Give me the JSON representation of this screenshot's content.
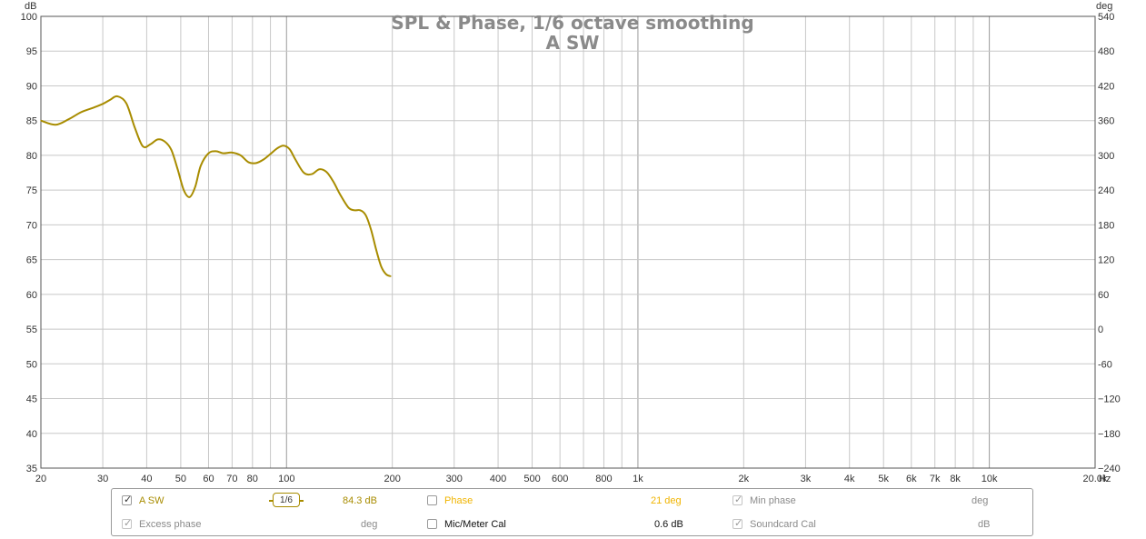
{
  "chart_data": {
    "type": "line",
    "title": "SPL & Phase, 1/6 octave smoothing",
    "subtitle": "A SW",
    "x_unit": "Hz",
    "y_left_unit": "dB",
    "y_right_unit": "deg",
    "x_scale": "log",
    "xlim": [
      20,
      20000
    ],
    "ylim_left": [
      35,
      100
    ],
    "ylim_right": [
      -240,
      540
    ],
    "grid": true,
    "x_ticks": [
      {
        "value": 20,
        "label": "20"
      },
      {
        "value": 30,
        "label": "30"
      },
      {
        "value": 40,
        "label": "40"
      },
      {
        "value": 50,
        "label": "50"
      },
      {
        "value": 60,
        "label": "60"
      },
      {
        "value": 70,
        "label": "70"
      },
      {
        "value": 80,
        "label": "80"
      },
      {
        "value": 100,
        "label": "100"
      },
      {
        "value": 200,
        "label": "200"
      },
      {
        "value": 300,
        "label": "300"
      },
      {
        "value": 400,
        "label": "400"
      },
      {
        "value": 500,
        "label": "500"
      },
      {
        "value": 600,
        "label": "600"
      },
      {
        "value": 800,
        "label": "800"
      },
      {
        "value": 1000,
        "label": "1k"
      },
      {
        "value": 2000,
        "label": "2k"
      },
      {
        "value": 3000,
        "label": "3k"
      },
      {
        "value": 4000,
        "label": "4k"
      },
      {
        "value": 5000,
        "label": "5k"
      },
      {
        "value": 6000,
        "label": "6k"
      },
      {
        "value": 7000,
        "label": "7k"
      },
      {
        "value": 8000,
        "label": "8k"
      },
      {
        "value": 10000,
        "label": "10k"
      },
      {
        "value": 20000,
        "label": "20.0k"
      }
    ],
    "x_grid_minor": [
      90,
      700,
      900,
      9000
    ],
    "y_left_ticks": [
      100,
      95,
      90,
      85,
      80,
      75,
      70,
      65,
      60,
      55,
      50,
      45,
      40,
      35
    ],
    "y_right_ticks": [
      "540",
      "480",
      "420",
      "360",
      "300",
      "240",
      "180",
      "120",
      "60",
      "0",
      "-60",
      "−120",
      "−180",
      "−240"
    ],
    "series": [
      {
        "name": "A SW",
        "color": "#a88c00",
        "x": [
          20,
          22,
          24,
          26,
          28,
          30,
          31.5,
          33,
          35,
          37,
          39,
          41,
          43,
          45,
          47,
          49,
          51,
          53,
          55,
          57,
          60,
          63,
          66,
          70,
          74,
          78,
          82,
          86,
          90,
          94,
          98,
          102,
          106,
          112,
          118,
          124,
          130,
          136,
          142,
          150,
          156,
          162,
          168,
          174,
          180,
          186,
          192,
          198
        ],
        "y": [
          85.0,
          84.4,
          85.2,
          86.2,
          86.8,
          87.4,
          88.0,
          88.5,
          87.5,
          84.0,
          81.3,
          81.6,
          82.3,
          82.0,
          80.8,
          78.0,
          75.0,
          74.0,
          75.5,
          78.5,
          80.3,
          80.6,
          80.3,
          80.4,
          80.0,
          79.0,
          78.9,
          79.4,
          80.2,
          81.0,
          81.4,
          80.9,
          79.4,
          77.5,
          77.3,
          78.0,
          77.6,
          76.2,
          74.4,
          72.5,
          72.1,
          72.1,
          71.4,
          69.3,
          66.4,
          64.0,
          62.9,
          62.6
        ]
      }
    ]
  },
  "legend": {
    "row1": {
      "series_label": "A SW",
      "smoothing_num": "1",
      "smoothing_den": "6",
      "spl_value": "84.3 dB",
      "phase_label": "Phase",
      "phase_value": "21 deg",
      "min_phase_label": "Min phase",
      "min_phase_unit": "deg"
    },
    "row2": {
      "excess_phase_label": "Excess phase",
      "excess_phase_unit": "deg",
      "mic_cal_label": "Mic/Meter Cal",
      "mic_cal_value": "0.6 dB",
      "soundcard_cal_label": "Soundcard Cal",
      "soundcard_cal_unit": "dB"
    },
    "colors": {
      "series": "#a88c00",
      "phase": "#f0b400",
      "dim": "#8a8a8a"
    }
  }
}
